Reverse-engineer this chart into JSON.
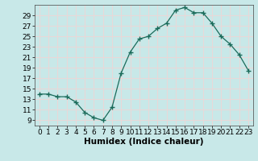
{
  "x": [
    0,
    1,
    2,
    3,
    4,
    5,
    6,
    7,
    8,
    9,
    10,
    11,
    12,
    13,
    14,
    15,
    16,
    17,
    18,
    19,
    20,
    21,
    22,
    23
  ],
  "y": [
    14.0,
    14.0,
    13.5,
    13.5,
    12.5,
    10.5,
    9.5,
    9.0,
    11.5,
    18.0,
    22.0,
    24.5,
    25.0,
    26.5,
    27.5,
    30.0,
    30.5,
    29.5,
    29.5,
    27.5,
    25.0,
    23.5,
    21.5,
    18.5
  ],
  "line_color": "#1a6b5a",
  "marker": "+",
  "marker_size": 4,
  "bg_color": "#c8e8e8",
  "grid_color": "#e8d8d8",
  "xlabel": "Humidex (Indice chaleur)",
  "xlim": [
    -0.5,
    23.5
  ],
  "ylim": [
    8,
    31
  ],
  "yticks": [
    9,
    11,
    13,
    15,
    17,
    19,
    21,
    23,
    25,
    27,
    29
  ],
  "xticks": [
    0,
    1,
    2,
    3,
    4,
    5,
    6,
    7,
    8,
    9,
    10,
    11,
    12,
    13,
    14,
    15,
    16,
    17,
    18,
    19,
    20,
    21,
    22,
    23
  ],
  "xlabel_fontsize": 7.5,
  "tick_fontsize": 6.5
}
